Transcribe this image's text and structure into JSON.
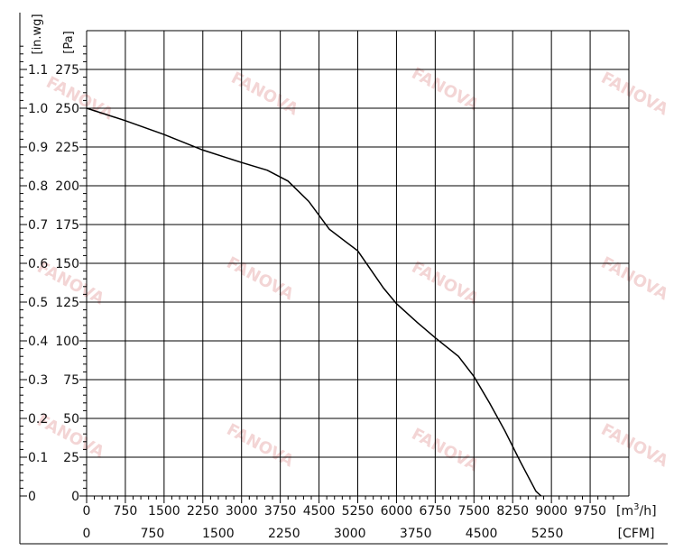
{
  "chart_data": {
    "type": "line",
    "title": "",
    "x_axes": {
      "primary": {
        "unit_label": "[m³/h]",
        "unit_base": "[m",
        "unit_sup": "3",
        "unit_tail": "/h]",
        "ticks": [
          "0",
          "750",
          "1500",
          "2250",
          "3000",
          "3750",
          "4500",
          "5250",
          "6000",
          "6750",
          "7500",
          "8250",
          "9000",
          "9750"
        ],
        "range": [
          0,
          10500
        ]
      },
      "secondary": {
        "unit_label": "[CFM]",
        "ticks": [
          "0",
          "750",
          "1500",
          "2250",
          "3000",
          "3750",
          "4500",
          "5250"
        ],
        "tick_values": [
          0,
          750,
          1500,
          2250,
          3000,
          3750,
          4500,
          5250
        ],
        "cfm_to_m3h": 1.699
      }
    },
    "y_axes": {
      "primary": {
        "unit_label": "[Pa]",
        "ticks": [
          "0",
          "25",
          "50",
          "75",
          "100",
          "125",
          "150",
          "175",
          "200",
          "225",
          "250",
          "275"
        ],
        "range": [
          0,
          300
        ]
      },
      "secondary": {
        "unit_label": "[in.wg]",
        "ticks": [
          "0",
          "0.1",
          "0.2",
          "0.3",
          "0.4",
          "0.5",
          "0.6",
          "0.7",
          "0.8",
          "0.9",
          "1.0",
          "1.1"
        ]
      }
    },
    "grid": true,
    "series": [
      {
        "x": [
          0,
          750,
          1500,
          2250,
          3000,
          3500,
          3900,
          4300,
          4700,
          5250,
          5750,
          6000,
          6400,
          6750,
          7200,
          7500,
          7800,
          8100,
          8400,
          8700,
          8800
        ],
        "y": [
          250,
          242,
          233,
          223,
          215,
          210,
          203,
          190,
          172,
          158,
          134,
          124,
          112,
          102,
          90,
          77,
          60,
          42,
          22,
          3,
          0
        ]
      }
    ],
    "colors": {
      "line": "#000000",
      "grid": "#000000",
      "watermark": "#f3d5d5"
    },
    "watermark_text": "FANOVA"
  }
}
